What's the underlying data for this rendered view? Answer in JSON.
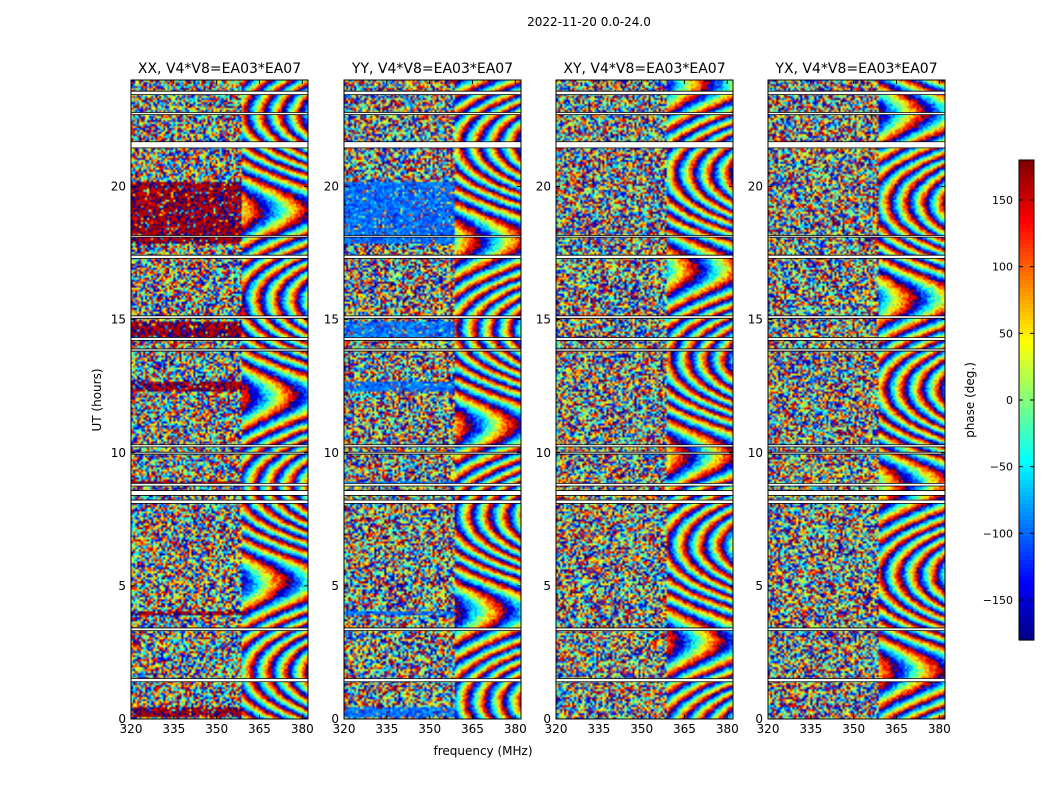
{
  "figure_title": "2022-11-20 0.0-24.0",
  "chart_data": {
    "type": "heatmap",
    "title": "2022-11-20 0.0-24.0",
    "xlabel": "frequency (MHz)",
    "ylabel": "UT (hours)",
    "xlim": [
      320,
      382
    ],
    "ylim": [
      0,
      24
    ],
    "xticks": [
      "320",
      "335",
      "350",
      "365",
      "380"
    ],
    "yticks": [
      "0",
      "5",
      "10",
      "15",
      "20"
    ],
    "panels": [
      {
        "title": "XX, V4*V8=EA03*EA07",
        "strong_phase": 170
      },
      {
        "title": "YY, V4*V8=EA03*EA07",
        "strong_phase": -95
      },
      {
        "title": "XY, V4*V8=EA03*EA07",
        "strong_phase": null
      },
      {
        "title": "YX, V4*V8=EA03*EA07",
        "strong_phase": null
      }
    ],
    "colorbar": {
      "label": "phase (deg.)",
      "range": [
        -180,
        180
      ],
      "ticks": [
        "150",
        "100",
        "50",
        "0",
        "−50",
        "−100",
        "−150"
      ],
      "tick_values": [
        150,
        100,
        50,
        0,
        -50,
        -100,
        -150
      ],
      "colormap": "jet"
    },
    "flagged_bands_hours": [
      [
        23.45,
        23.58
      ],
      [
        22.7,
        22.78
      ],
      [
        21.45,
        21.68
      ],
      [
        18.1,
        18.16
      ],
      [
        17.3,
        17.42
      ],
      [
        15.05,
        15.14
      ],
      [
        14.22,
        14.33
      ],
      [
        13.82,
        13.9
      ],
      [
        10.22,
        10.3
      ],
      [
        9.95,
        10.02
      ],
      [
        8.75,
        8.85
      ],
      [
        8.4,
        8.58
      ],
      [
        8.1,
        8.22
      ],
      [
        3.32,
        3.42
      ],
      [
        1.4,
        1.52
      ]
    ]
  }
}
